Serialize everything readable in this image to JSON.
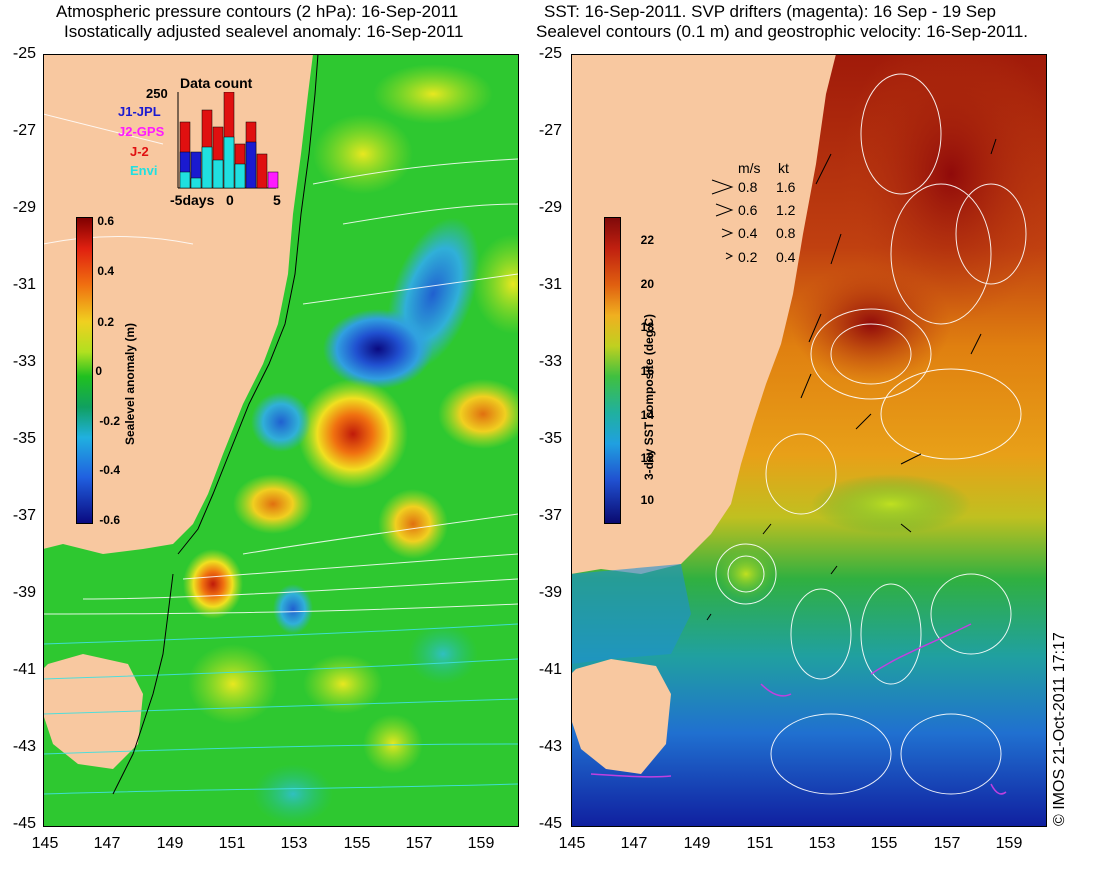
{
  "left_panel": {
    "title_line1": "Atmospheric pressure contours (2 hPa): 16-Sep-2011",
    "title_line2": "Isostatically adjusted sealevel anomaly: 16-Sep-2011",
    "yticks": [
      "-25",
      "-27",
      "-29",
      "-31",
      "-33",
      "-35",
      "-37",
      "-39",
      "-41",
      "-43",
      "-45"
    ],
    "xticks": [
      "145",
      "147",
      "149",
      "151",
      "153",
      "155",
      "157",
      "159"
    ],
    "colorbar": {
      "label": "Sealevel anomaly (m)",
      "ticks": [
        "0.6",
        "0.4",
        "0.2",
        "0",
        "-0.2",
        "-0.4",
        "-0.6"
      ]
    },
    "inset": {
      "title": "Data count",
      "ymax_label": "250",
      "xtick_labels": [
        "-5days",
        "0",
        "5"
      ],
      "legend": [
        {
          "label": "J1-JPL",
          "color": "#1a1ad0"
        },
        {
          "label": "J2-GPS",
          "color": "#ff1aff"
        },
        {
          "label": "J-2",
          "color": "#e01010"
        },
        {
          "label": "Envi",
          "color": "#20e0e0"
        }
      ]
    }
  },
  "right_panel": {
    "title_line1": "SST: 16-Sep-2011. SVP drifters (magenta): 16 Sep - 19 Sep",
    "title_line2": "Sealevel contours (0.1 m) and geostrophic velocity: 16-Sep-2011.",
    "yticks": [
      "-25",
      "-27",
      "-29",
      "-31",
      "-33",
      "-35",
      "-37",
      "-39",
      "-41",
      "-43",
      "-45"
    ],
    "xticks": [
      "145",
      "147",
      "149",
      "151",
      "153",
      "155",
      "157",
      "159"
    ],
    "colorbar": {
      "label": "3-day SST composite (deg C)",
      "ticks": [
        "22",
        "20",
        "18",
        "16",
        "14",
        "12",
        "10"
      ]
    },
    "velocity_legend": {
      "header_ms": "m/s",
      "header_kt": "kt",
      "rows": [
        {
          "ms": "0.8",
          "kt": "1.6"
        },
        {
          "ms": "0.6",
          "kt": "1.2"
        },
        {
          "ms": "0.4",
          "kt": "0.8"
        },
        {
          "ms": "0.2",
          "kt": "0.4"
        }
      ]
    }
  },
  "stamp": "© IMOS 21-Oct-2011 17:17",
  "colors": {
    "land": "#f8c8a0",
    "sla_mid": "#1ec81e",
    "sst_warm": "#a01a0a",
    "sst_cool": "#1040c0"
  }
}
